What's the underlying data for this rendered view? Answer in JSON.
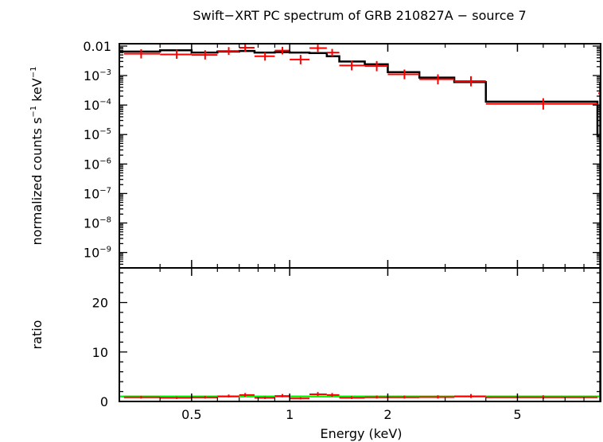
{
  "chart_data": {
    "type": "scatter",
    "title": "Swift−XRT PC spectrum of GRB 210827A − source 7",
    "xlabel": "Energy (keV)",
    "x_scale": "log",
    "xlim": [
      0.3,
      9.0
    ],
    "x_ticks": [
      {
        "value": 0.5,
        "label": "0.5"
      },
      {
        "value": 1,
        "label": "1"
      },
      {
        "value": 2,
        "label": "2"
      },
      {
        "value": 5,
        "label": "5"
      }
    ],
    "grid": false,
    "legend": "none",
    "panels": [
      {
        "name": "spectrum",
        "ylabel_main": "normalized counts s",
        "ylabel_sup1": "−1",
        "ylabel_mid": " keV",
        "ylabel_sup2": "−1",
        "y_scale": "log",
        "ylim": [
          3e-10,
          0.012
        ],
        "y_ticks": [
          {
            "value": 0.01,
            "base": "0.01",
            "exp": ""
          },
          {
            "value": 0.001,
            "base": "10",
            "exp": "−3"
          },
          {
            "value": 0.0001,
            "base": "10",
            "exp": "−4"
          },
          {
            "value": 1e-05,
            "base": "10",
            "exp": "−5"
          },
          {
            "value": 1e-06,
            "base": "10",
            "exp": "−6"
          },
          {
            "value": 1e-07,
            "base": "10",
            "exp": "−7"
          },
          {
            "value": 1e-08,
            "base": "10",
            "exp": "−8"
          },
          {
            "value": 1e-09,
            "base": "10",
            "exp": "−9"
          }
        ],
        "series": [
          {
            "color": "#ff0000",
            "role": "data",
            "points": [
              {
                "x": 0.35,
                "xlo": 0.31,
                "xhi": 0.4,
                "y": 0.0055,
                "ylo": 0.0038,
                "yhi": 0.0078
              },
              {
                "x": 0.45,
                "xlo": 0.4,
                "xhi": 0.5,
                "y": 0.0052,
                "ylo": 0.0037,
                "yhi": 0.0075
              },
              {
                "x": 0.55,
                "xlo": 0.5,
                "xhi": 0.6,
                "y": 0.005,
                "ylo": 0.0035,
                "yhi": 0.0072
              },
              {
                "x": 0.65,
                "xlo": 0.6,
                "xhi": 0.7,
                "y": 0.0068,
                "ylo": 0.005,
                "yhi": 0.0092
              },
              {
                "x": 0.73,
                "xlo": 0.7,
                "xhi": 0.78,
                "y": 0.0088,
                "ylo": 0.0064,
                "yhi": 0.012
              },
              {
                "x": 0.84,
                "xlo": 0.78,
                "xhi": 0.9,
                "y": 0.0045,
                "ylo": 0.0032,
                "yhi": 0.0062
              },
              {
                "x": 0.95,
                "xlo": 0.9,
                "xhi": 1.0,
                "y": 0.007,
                "ylo": 0.0052,
                "yhi": 0.0094
              },
              {
                "x": 1.08,
                "xlo": 1.0,
                "xhi": 1.15,
                "y": 0.0035,
                "ylo": 0.0024,
                "yhi": 0.005
              },
              {
                "x": 1.22,
                "xlo": 1.15,
                "xhi": 1.3,
                "y": 0.0085,
                "ylo": 0.0064,
                "yhi": 0.0112
              },
              {
                "x": 1.35,
                "xlo": 1.3,
                "xhi": 1.42,
                "y": 0.006,
                "ylo": 0.0044,
                "yhi": 0.008
              },
              {
                "x": 1.55,
                "xlo": 1.42,
                "xhi": 1.7,
                "y": 0.0022,
                "ylo": 0.0015,
                "yhi": 0.0032
              },
              {
                "x": 1.85,
                "xlo": 1.7,
                "xhi": 2.0,
                "y": 0.0021,
                "ylo": 0.0014,
                "yhi": 0.0031
              },
              {
                "x": 2.25,
                "xlo": 2.0,
                "xhi": 2.5,
                "y": 0.0011,
                "ylo": 0.00075,
                "yhi": 0.0016
              },
              {
                "x": 2.85,
                "xlo": 2.5,
                "xhi": 3.2,
                "y": 0.00075,
                "ylo": 0.0005,
                "yhi": 0.0011
              },
              {
                "x": 3.6,
                "xlo": 3.2,
                "xhi": 4.0,
                "y": 0.00065,
                "ylo": 0.00043,
                "yhi": 0.00095
              },
              {
                "x": 6.0,
                "xlo": 4.0,
                "xhi": 8.8,
                "y": 0.00011,
                "ylo": 7e-05,
                "yhi": 0.00017
              },
              {
                "x": 8.95,
                "xlo": 8.85,
                "xhi": 9.0,
                "y": 0.00025,
                "ylo": 3e-10,
                "yhi": 0.0006
              }
            ]
          },
          {
            "color": "#000000",
            "role": "model",
            "steps": [
              {
                "xlo": 0.3,
                "xhi": 0.4,
                "y": 0.0065
              },
              {
                "xlo": 0.4,
                "xhi": 0.5,
                "y": 0.0072
              },
              {
                "xlo": 0.5,
                "xhi": 0.6,
                "y": 0.006
              },
              {
                "xlo": 0.6,
                "xhi": 0.7,
                "y": 0.0065
              },
              {
                "xlo": 0.7,
                "xhi": 0.78,
                "y": 0.0068
              },
              {
                "xlo": 0.78,
                "xhi": 0.9,
                "y": 0.006
              },
              {
                "xlo": 0.9,
                "xhi": 1.0,
                "y": 0.0062
              },
              {
                "xlo": 1.0,
                "xhi": 1.15,
                "y": 0.006
              },
              {
                "xlo": 1.15,
                "xhi": 1.3,
                "y": 0.0058
              },
              {
                "xlo": 1.3,
                "xhi": 1.42,
                "y": 0.0045
              },
              {
                "xlo": 1.42,
                "xhi": 1.7,
                "y": 0.003
              },
              {
                "xlo": 1.7,
                "xhi": 2.0,
                "y": 0.0024
              },
              {
                "xlo": 2.0,
                "xhi": 2.5,
                "y": 0.0013
              },
              {
                "xlo": 2.5,
                "xhi": 3.2,
                "y": 0.00085
              },
              {
                "xlo": 3.2,
                "xhi": 4.0,
                "y": 0.0006
              },
              {
                "xlo": 4.0,
                "xhi": 8.8,
                "y": 0.00013
              },
              {
                "xlo": 8.8,
                "xhi": 9.0,
                "y": 9e-06
              }
            ]
          }
        ]
      },
      {
        "name": "ratio",
        "ylabel": "ratio",
        "y_scale": "linear",
        "ylim": [
          0,
          27
        ],
        "y_ticks": [
          {
            "value": 0,
            "label": "0"
          },
          {
            "value": 10,
            "label": "10"
          },
          {
            "value": 20,
            "label": "20"
          }
        ],
        "reference_line": {
          "y": 1,
          "color": "#00ff00"
        },
        "series": [
          {
            "color": "#ff0000",
            "role": "ratio",
            "points": [
              {
                "x": 0.35,
                "xlo": 0.31,
                "xhi": 0.4,
                "y": 0.85,
                "ylo": 0.6,
                "yhi": 1.1
              },
              {
                "x": 0.45,
                "xlo": 0.4,
                "xhi": 0.5,
                "y": 0.75,
                "ylo": 0.5,
                "yhi": 1.0
              },
              {
                "x": 0.55,
                "xlo": 0.5,
                "xhi": 0.6,
                "y": 0.82,
                "ylo": 0.6,
                "yhi": 1.1
              },
              {
                "x": 0.65,
                "xlo": 0.6,
                "xhi": 0.7,
                "y": 1.05,
                "ylo": 0.8,
                "yhi": 1.4
              },
              {
                "x": 0.73,
                "xlo": 0.7,
                "xhi": 0.78,
                "y": 1.3,
                "ylo": 0.95,
                "yhi": 1.7
              },
              {
                "x": 0.84,
                "xlo": 0.78,
                "xhi": 0.9,
                "y": 0.75,
                "ylo": 0.5,
                "yhi": 1.0
              },
              {
                "x": 0.95,
                "xlo": 0.9,
                "xhi": 1.0,
                "y": 1.1,
                "ylo": 0.85,
                "yhi": 1.5
              },
              {
                "x": 1.08,
                "xlo": 1.0,
                "xhi": 1.15,
                "y": 0.6,
                "ylo": 0.4,
                "yhi": 0.85
              },
              {
                "x": 1.22,
                "xlo": 1.15,
                "xhi": 1.3,
                "y": 1.45,
                "ylo": 1.1,
                "yhi": 1.9
              },
              {
                "x": 1.35,
                "xlo": 1.3,
                "xhi": 1.42,
                "y": 1.3,
                "ylo": 0.95,
                "yhi": 1.7
              },
              {
                "x": 1.55,
                "xlo": 1.42,
                "xhi": 1.7,
                "y": 0.75,
                "ylo": 0.5,
                "yhi": 1.05
              },
              {
                "x": 1.85,
                "xlo": 1.7,
                "xhi": 2.0,
                "y": 0.85,
                "ylo": 0.6,
                "yhi": 1.2
              },
              {
                "x": 2.25,
                "xlo": 2.0,
                "xhi": 2.5,
                "y": 0.85,
                "ylo": 0.6,
                "yhi": 1.2
              },
              {
                "x": 2.85,
                "xlo": 2.5,
                "xhi": 3.2,
                "y": 0.88,
                "ylo": 0.6,
                "yhi": 1.25
              },
              {
                "x": 3.6,
                "xlo": 3.2,
                "xhi": 4.0,
                "y": 1.05,
                "ylo": 0.7,
                "yhi": 1.5
              },
              {
                "x": 6.0,
                "xlo": 4.0,
                "xhi": 8.8,
                "y": 0.85,
                "ylo": 0.55,
                "yhi": 1.25
              },
              {
                "x": 8.95,
                "xlo": 8.85,
                "xhi": 9.0,
                "y": 27,
                "ylo": 0,
                "yhi": 27
              }
            ]
          }
        ]
      }
    ]
  }
}
